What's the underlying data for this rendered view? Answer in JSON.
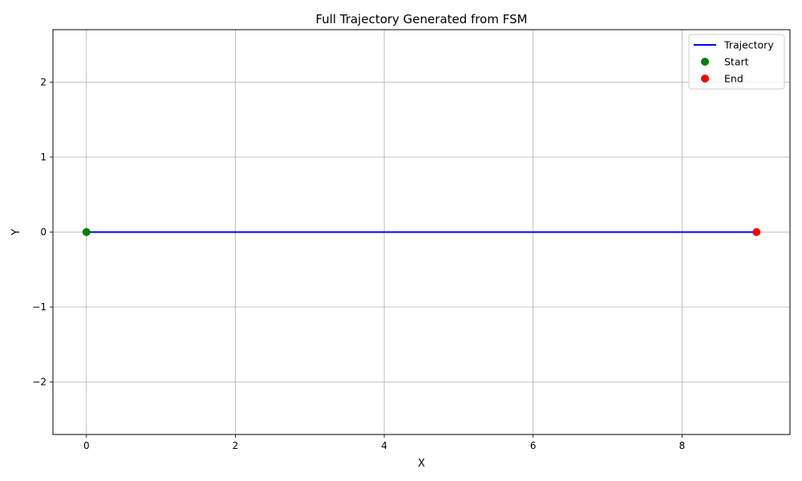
{
  "chart_data": {
    "type": "line",
    "title": "Full Trajectory Generated from FSM",
    "xlabel": "X",
    "ylabel": "Y",
    "xlim": [
      -0.45,
      9.45
    ],
    "ylim": [
      -2.7,
      2.7
    ],
    "xticks": [
      0,
      2,
      4,
      6,
      8
    ],
    "yticks": [
      -2,
      -1,
      0,
      1,
      2
    ],
    "xtick_labels": [
      "0",
      "2",
      "4",
      "6",
      "8"
    ],
    "ytick_labels": [
      "−2",
      "−1",
      "0",
      "1",
      "2"
    ],
    "grid": true,
    "legend_position": "top-right",
    "series": [
      {
        "name": "Trajectory",
        "kind": "line",
        "color": "#0000ff",
        "x": [
          0,
          1,
          2,
          3,
          4,
          5,
          6,
          7,
          8,
          9
        ],
        "y": [
          0,
          0,
          0,
          0,
          0,
          0,
          0,
          0,
          0,
          0
        ]
      },
      {
        "name": "Start",
        "kind": "scatter",
        "color": "#008000",
        "x": [
          0
        ],
        "y": [
          0
        ]
      },
      {
        "name": "End",
        "kind": "scatter",
        "color": "#ff0000",
        "x": [
          9
        ],
        "y": [
          0
        ]
      }
    ]
  }
}
